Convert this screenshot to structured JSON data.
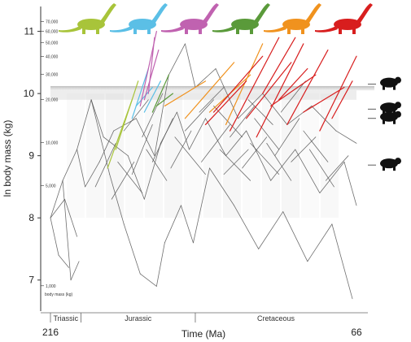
{
  "chart_data": {
    "type": "line",
    "ylabel": "ln body mass (kg)",
    "xlabel": "Time (Ma)",
    "x_range_labels": [
      "216",
      "66"
    ],
    "xlim": [
      216,
      66
    ],
    "ylim": [
      6.5,
      11.4
    ],
    "yticks": [
      7,
      8,
      9,
      10,
      11
    ],
    "ytick_labels": [
      "7",
      "8",
      "9",
      "10",
      "11"
    ],
    "kg_scale_title": "body mass (kg)",
    "kg_ticks": [
      {
        "kg": 1000,
        "label": "1,000"
      },
      {
        "kg": 5000,
        "label": "5,000"
      },
      {
        "kg": 10000,
        "label": "10,000"
      },
      {
        "kg": 20000,
        "label": "20,000"
      },
      {
        "kg": 30000,
        "label": "30,000"
      },
      {
        "kg": 40000,
        "label": "40,000"
      },
      {
        "kg": 50000,
        "label": "50,000"
      },
      {
        "kg": 60000,
        "label": "60,000"
      },
      {
        "kg": 70000,
        "label": "70,000"
      }
    ],
    "periods": [
      {
        "name": "Triassic",
        "start": 216,
        "end": 201
      },
      {
        "name": "Jurassic",
        "start": 201,
        "end": 145
      },
      {
        "name": "Cretaceous",
        "start": 145,
        "end": 66
      }
    ],
    "reference_band": {
      "y_low": 10.05,
      "y_high": 10.12
    },
    "silhouettes": [
      {
        "icon": "brachiosaur-silhouette-icon",
        "color": "#a8c43a"
      },
      {
        "icon": "diplodocid-silhouette-icon",
        "color": "#5bbfe6"
      },
      {
        "icon": "mamenchisaur-silhouette-icon",
        "color": "#c062b0"
      },
      {
        "icon": "camarasaur-silhouette-icon",
        "color": "#5a9a3a"
      },
      {
        "icon": "titanosaur-silhouette-icon",
        "color": "#f0921e"
      },
      {
        "icon": "giant-titanosaur-silhouette-icon",
        "color": "#d81e1e"
      }
    ],
    "right_icons": [
      {
        "icon": "mammoth-silhouette-icon",
        "y": 10.15
      },
      {
        "icon": "indricotherium-silhouette-icon",
        "y": 9.75
      },
      {
        "icon": "hadrosaur-silhouette-icon",
        "y": 9.6
      },
      {
        "icon": "theropod-silhouette-icon",
        "y": 8.85
      }
    ],
    "series": [
      {
        "color": "#555555",
        "segments": [
          [
            216,
            8.0,
            210,
            8.6
          ],
          [
            216,
            8.0,
            212,
            7.4
          ],
          [
            216,
            8.0,
            209,
            8.3
          ],
          [
            210,
            8.6,
            206,
            7.0
          ],
          [
            210,
            8.6,
            203,
            9.1
          ],
          [
            212,
            7.4,
            207,
            7.2
          ],
          [
            209,
            8.3,
            203,
            7.7
          ],
          [
            206,
            7.0,
            202,
            7.3
          ],
          [
            203,
            9.1,
            196,
            9.9
          ],
          [
            203,
            9.1,
            199,
            8.5
          ],
          [
            199,
            8.5,
            192,
            8.9
          ],
          [
            196,
            9.9,
            190,
            9.3
          ],
          [
            196,
            9.9,
            187,
            8.7
          ],
          [
            192,
            8.9,
            185,
            9.4
          ],
          [
            190,
            9.3,
            178,
            9.0
          ],
          [
            187,
            8.7,
            180,
            7.9
          ],
          [
            185,
            9.4,
            174,
            9.6
          ],
          [
            178,
            9.0,
            170,
            8.3
          ],
          [
            180,
            7.9,
            172,
            7.1
          ],
          [
            174,
            9.6,
            165,
            9.0
          ],
          [
            170,
            8.3,
            162,
            9.2
          ],
          [
            172,
            7.1,
            164,
            6.9
          ],
          [
            165,
            9.0,
            158,
            10.3
          ],
          [
            162,
            9.2,
            154,
            9.7
          ],
          [
            164,
            6.9,
            160,
            7.6
          ],
          [
            158,
            10.3,
            150,
            10.8
          ],
          [
            154,
            9.7,
            148,
            9.1
          ],
          [
            160,
            7.6,
            152,
            8.2
          ],
          [
            150,
            10.8,
            145,
            10.1
          ],
          [
            148,
            9.1,
            140,
            9.6
          ],
          [
            152,
            8.2,
            146,
            7.6
          ],
          [
            145,
            10.1,
            135,
            10.4
          ],
          [
            140,
            9.6,
            130,
            9.0
          ],
          [
            146,
            7.6,
            138,
            8.8
          ],
          [
            135,
            10.4,
            124,
            9.6
          ],
          [
            130,
            9.0,
            120,
            9.4
          ],
          [
            138,
            8.8,
            126,
            8.2
          ],
          [
            124,
            9.6,
            112,
            10.0
          ],
          [
            120,
            9.4,
            108,
            8.6
          ],
          [
            126,
            8.2,
            114,
            7.5
          ],
          [
            112,
            10.0,
            100,
            9.5
          ],
          [
            108,
            8.6,
            96,
            9.1
          ],
          [
            114,
            7.5,
            102,
            8.1
          ],
          [
            100,
            9.5,
            88,
            9.8
          ],
          [
            96,
            9.1,
            84,
            8.4
          ],
          [
            102,
            8.1,
            90,
            7.3
          ],
          [
            88,
            9.8,
            76,
            9.4
          ],
          [
            84,
            8.4,
            72,
            8.9
          ],
          [
            90,
            7.3,
            78,
            7.9
          ],
          [
            76,
            9.4,
            66,
            9.2
          ],
          [
            72,
            8.9,
            66,
            8.2
          ],
          [
            78,
            7.9,
            68,
            6.7
          ],
          [
            155,
            9.3,
            140,
            8.7
          ],
          [
            142,
            8.9,
            128,
            9.5
          ],
          [
            133,
            9.1,
            118,
            8.6
          ],
          [
            122,
            8.8,
            110,
            9.3
          ],
          [
            118,
            9.2,
            104,
            8.7
          ],
          [
            106,
            9.0,
            94,
            9.6
          ],
          [
            98,
            8.9,
            86,
            9.3
          ],
          [
            92,
            9.4,
            80,
            8.9
          ],
          [
            180,
            9.4,
            168,
            9.9
          ],
          [
            186,
            8.3,
            175,
            8.9
          ],
          [
            176,
            8.7,
            166,
            9.5
          ],
          [
            169,
            9.1,
            159,
            8.6
          ],
          [
            166,
            8.9,
            156,
            9.6
          ],
          [
            150,
            9.4,
            136,
            9.9
          ],
          [
            136,
            9.8,
            122,
            9.3
          ],
          [
            128,
            9.3,
            116,
            9.8
          ],
          [
            116,
            9.6,
            104,
            9.1
          ],
          [
            110,
            9.2,
            98,
            8.6
          ],
          [
            194,
            8.5,
            184,
            9.2
          ],
          [
            183,
            8.9,
            171,
            8.4
          ],
          [
            171,
            9.3,
            161,
            10.0
          ],
          [
            157,
            8.8,
            147,
            9.4
          ],
          [
            143,
            9.7,
            131,
            10.1
          ],
          [
            131,
            8.7,
            119,
            9.1
          ],
          [
            119,
            9.9,
            107,
            9.5
          ],
          [
            103,
            9.7,
            91,
            10.2
          ],
          [
            89,
            9.1,
            77,
            8.5
          ],
          [
            81,
            8.6,
            70,
            9.0
          ]
        ]
      },
      {
        "color": "#a8c43a",
        "segments": [
          [
            188,
            8.8,
            176,
            9.9
          ],
          [
            184,
            9.1,
            173,
            10.2
          ]
        ]
      },
      {
        "color": "#5bbfe6",
        "segments": [
          [
            176,
            9.6,
            168,
            10.4
          ],
          [
            174,
            9.8,
            166,
            10.1
          ],
          [
            170,
            9.7,
            162,
            10.2
          ]
        ]
      },
      {
        "color": "#c062b0",
        "segments": [
          [
            172,
            9.8,
            164,
            11.0
          ],
          [
            170,
            9.9,
            163,
            10.7
          ],
          [
            168,
            10.0,
            165,
            10.9
          ]
        ]
      },
      {
        "color": "#5a9a3a",
        "segments": [
          [
            166,
            9.7,
            158,
            10.3
          ],
          [
            164,
            9.8,
            156,
            10.0
          ]
        ]
      },
      {
        "color": "#f0921e",
        "segments": [
          [
            160,
            9.8,
            140,
            10.2
          ],
          [
            150,
            9.6,
            126,
            10.5
          ],
          [
            138,
            9.7,
            118,
            10.3
          ],
          [
            130,
            9.5,
            112,
            10.8
          ]
        ]
      },
      {
        "color": "#d81e1e",
        "segments": [
          [
            140,
            9.5,
            120,
            10.2
          ],
          [
            136,
            9.7,
            112,
            10.6
          ],
          [
            128,
            9.4,
            104,
            10.9
          ],
          [
            120,
            9.6,
            98,
            10.5
          ],
          [
            115,
            9.3,
            92,
            10.8
          ],
          [
            108,
            9.8,
            86,
            10.3
          ],
          [
            100,
            9.5,
            80,
            10.7
          ],
          [
            92,
            9.7,
            72,
            10.1
          ],
          [
            84,
            9.4,
            66,
            10.6
          ],
          [
            78,
            9.6,
            68,
            10.2
          ],
          [
            112,
            10.0,
            96,
            10.9
          ],
          [
            104,
            9.9,
            90,
            10.4
          ]
        ]
      }
    ]
  }
}
